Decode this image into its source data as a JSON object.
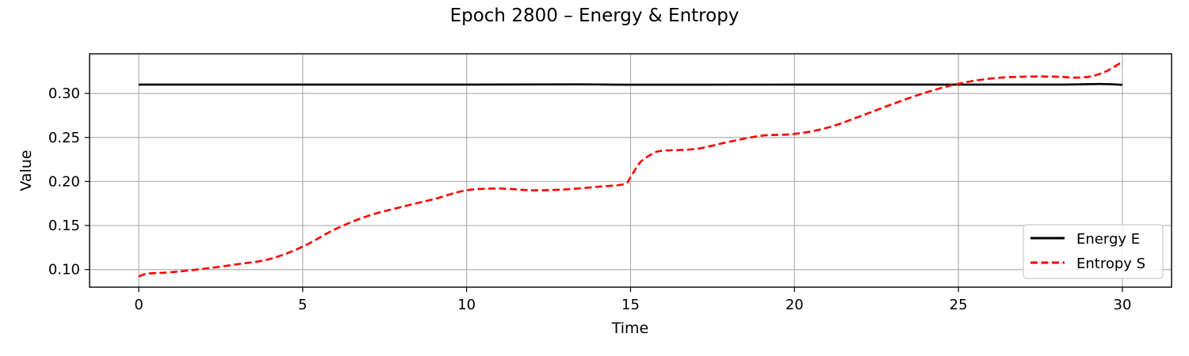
{
  "chart_data": {
    "type": "line",
    "title": "Epoch 2800 – Energy & Entropy",
    "xlabel": "Time",
    "ylabel": "Value",
    "xlim": [
      -1.5,
      31.5
    ],
    "ylim": [
      0.08,
      0.345
    ],
    "x_ticks": [
      0,
      5,
      10,
      15,
      20,
      25,
      30
    ],
    "x_tick_labels": [
      "0",
      "5",
      "10",
      "15",
      "20",
      "25",
      "30"
    ],
    "y_ticks": [
      0.1,
      0.15,
      0.2,
      0.25,
      0.3
    ],
    "y_tick_labels": [
      "0.10",
      "0.15",
      "0.20",
      "0.25",
      "0.30"
    ],
    "grid": true,
    "legend_position": "lower-right",
    "series": [
      {
        "name": "Energy E",
        "color": "#000000",
        "style": "solid",
        "x": [
          0,
          5,
          10,
          13.5,
          15,
          20,
          25,
          28,
          29.3,
          30
        ],
        "y": [
          0.31,
          0.31,
          0.31,
          0.3103,
          0.3099,
          0.31,
          0.31,
          0.31,
          0.3107,
          0.3098
        ]
      },
      {
        "name": "Entropy S",
        "color": "#ff0000",
        "style": "dashed",
        "x": [
          0,
          0.2,
          0.5,
          1,
          2,
          3,
          4,
          5,
          6,
          7,
          8,
          9,
          10,
          11,
          12,
          13,
          14,
          14.8,
          15,
          15.3,
          15.7,
          16,
          17,
          18,
          19,
          20,
          21,
          22,
          23,
          24,
          25,
          26,
          27,
          28,
          28.5,
          29,
          29.5,
          30
        ],
        "y": [
          0.092,
          0.095,
          0.096,
          0.097,
          0.101,
          0.106,
          0.112,
          0.126,
          0.146,
          0.161,
          0.171,
          0.18,
          0.19,
          0.192,
          0.19,
          0.191,
          0.194,
          0.197,
          0.205,
          0.222,
          0.232,
          0.235,
          0.237,
          0.245,
          0.252,
          0.254,
          0.261,
          0.274,
          0.288,
          0.301,
          0.311,
          0.317,
          0.319,
          0.319,
          0.318,
          0.319,
          0.325,
          0.336
        ]
      }
    ]
  }
}
